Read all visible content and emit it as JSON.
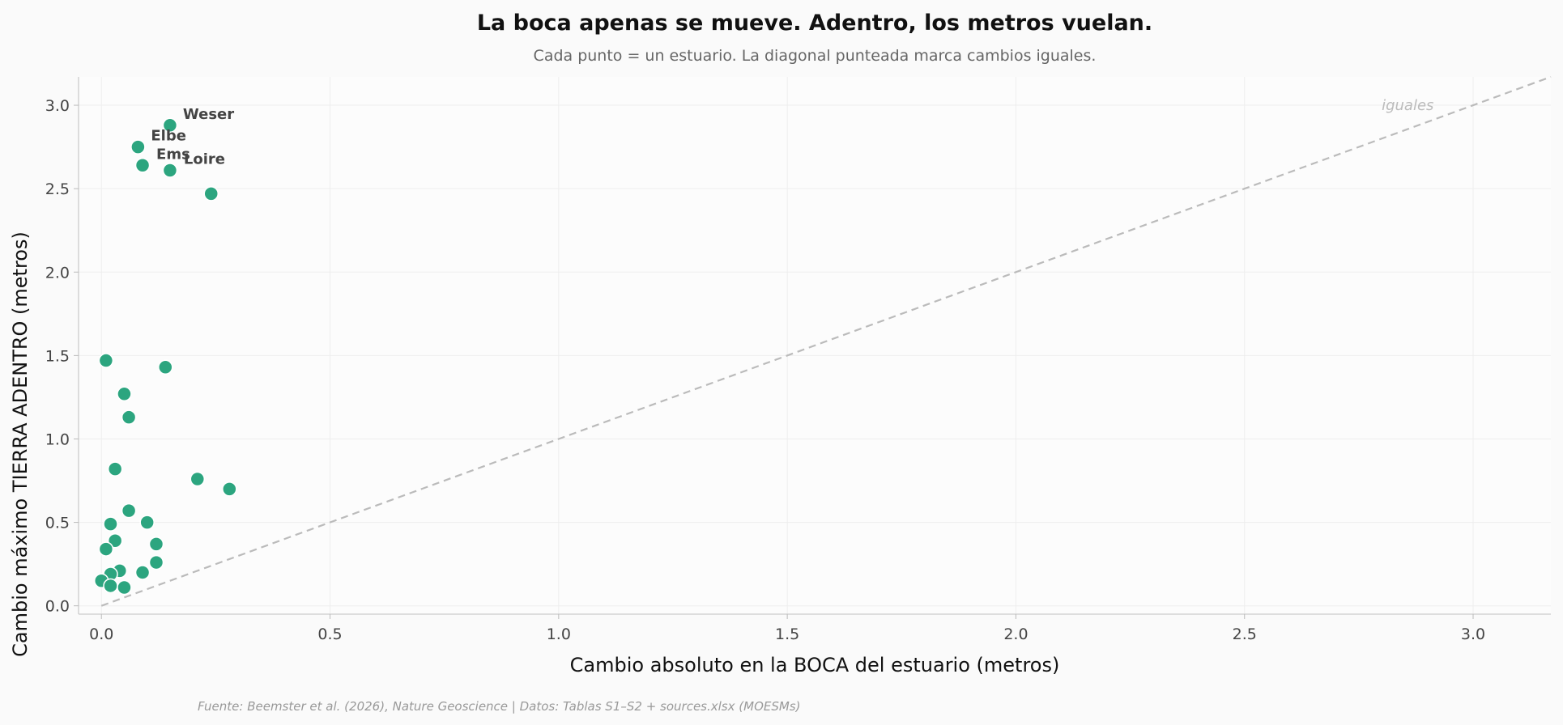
{
  "chart_data": {
    "type": "scatter",
    "title": "La boca apenas se mueve. Adentro, los metros vuelan.",
    "subtitle": "Cada punto = un estuario. La diagonal punteada marca cambios iguales.",
    "xlabel": "Cambio absoluto en la BOCA del estuario (metros)",
    "ylabel": "Cambio máximo TIERRA ADENTRO (metros)",
    "xlim": [
      -0.05,
      3.17
    ],
    "ylim": [
      -0.05,
      3.17
    ],
    "xticks": [
      0.0,
      0.5,
      1.0,
      1.5,
      2.0,
      2.5,
      3.0
    ],
    "xtick_labels": [
      "0.0",
      "0.5",
      "1.0",
      "1.5",
      "2.0",
      "2.5",
      "3.0"
    ],
    "yticks": [
      0.0,
      0.5,
      1.0,
      1.5,
      2.0,
      2.5,
      3.0
    ],
    "ytick_labels": [
      "0.0",
      "0.5",
      "1.0",
      "1.5",
      "2.0",
      "2.5",
      "3.0"
    ],
    "grid": true,
    "point_color": "#2ca57f",
    "diagonal_color": "#bbbbbb",
    "diagonal_label": "iguales",
    "source": "Fuente: Beemster et al. (2026), Nature Geoscience | Datos: Tablas S1–S2 + sources.xlsx (MOESMs)",
    "points": [
      {
        "x": 0.15,
        "y": 2.88,
        "label": "Weser"
      },
      {
        "x": 0.08,
        "y": 2.75,
        "label": "Elbe"
      },
      {
        "x": 0.09,
        "y": 2.64,
        "label": "Ems"
      },
      {
        "x": 0.15,
        "y": 2.61,
        "label": "Loire"
      },
      {
        "x": 0.24,
        "y": 2.47
      },
      {
        "x": 0.01,
        "y": 1.47
      },
      {
        "x": 0.14,
        "y": 1.43
      },
      {
        "x": 0.05,
        "y": 1.27
      },
      {
        "x": 0.06,
        "y": 1.13
      },
      {
        "x": 0.03,
        "y": 0.82
      },
      {
        "x": 0.21,
        "y": 0.76
      },
      {
        "x": 0.28,
        "y": 0.7
      },
      {
        "x": 0.06,
        "y": 0.57
      },
      {
        "x": 0.1,
        "y": 0.5
      },
      {
        "x": 0.02,
        "y": 0.49
      },
      {
        "x": 0.03,
        "y": 0.39
      },
      {
        "x": 0.12,
        "y": 0.37
      },
      {
        "x": 0.01,
        "y": 0.34
      },
      {
        "x": 0.12,
        "y": 0.26
      },
      {
        "x": 0.04,
        "y": 0.21
      },
      {
        "x": 0.09,
        "y": 0.2
      },
      {
        "x": 0.02,
        "y": 0.19
      },
      {
        "x": 0.0,
        "y": 0.15
      },
      {
        "x": 0.02,
        "y": 0.12
      },
      {
        "x": 0.05,
        "y": 0.11
      }
    ]
  }
}
